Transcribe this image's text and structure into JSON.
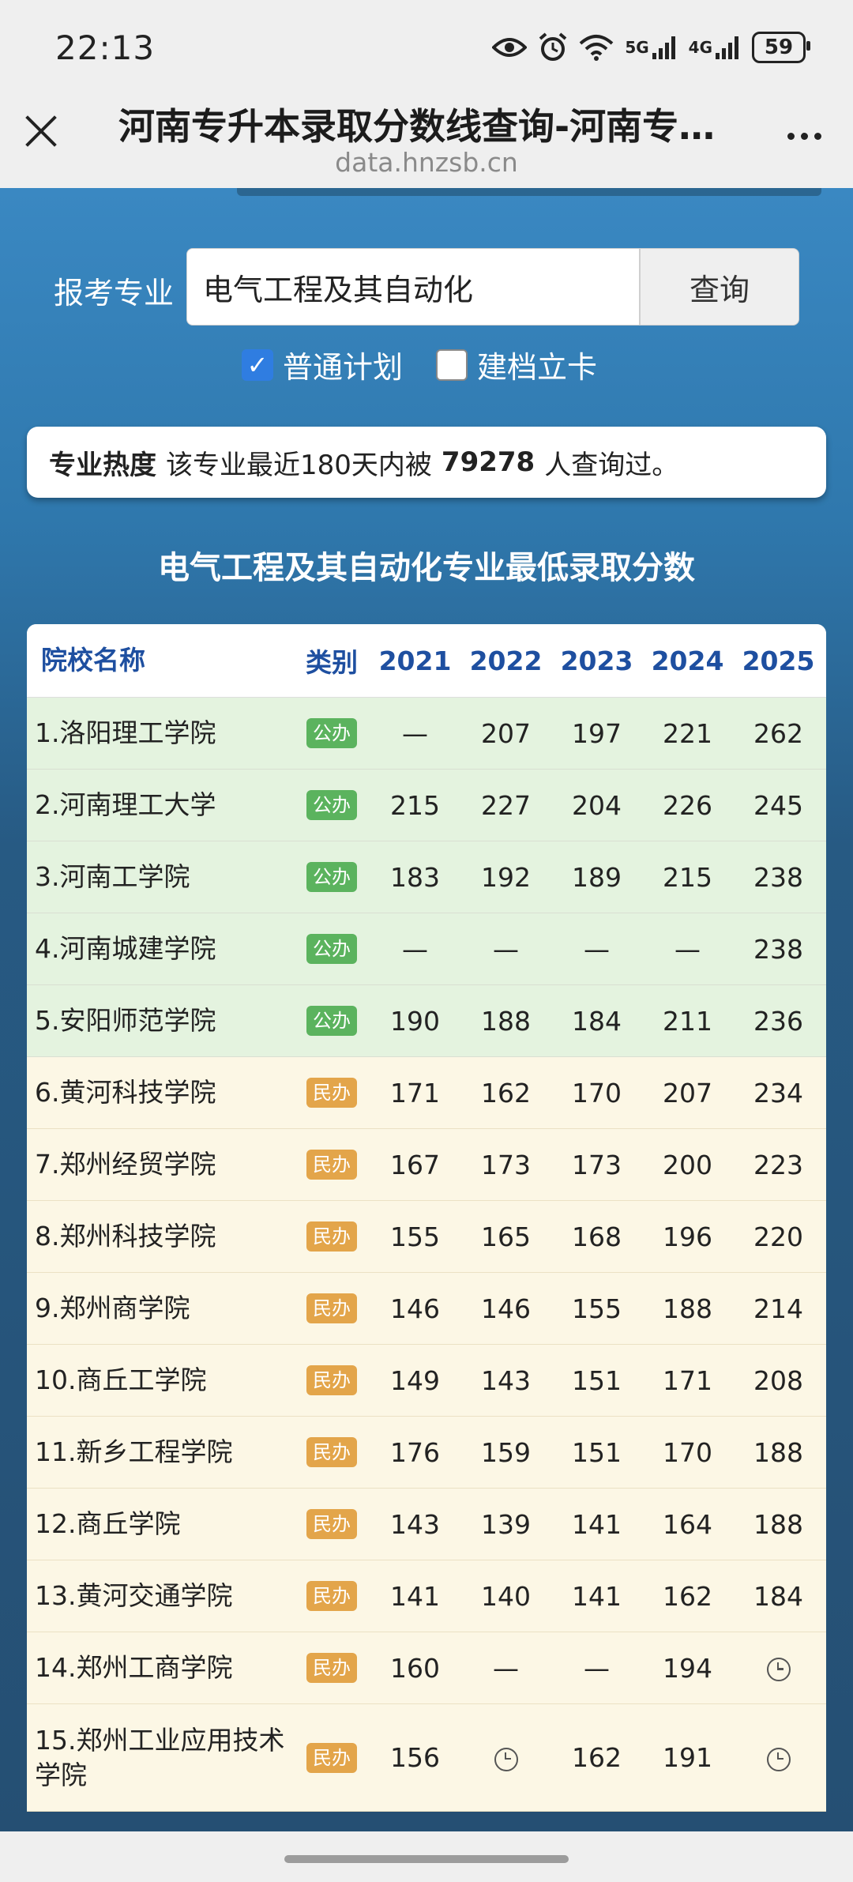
{
  "status_bar": {
    "time": "22:13",
    "icons": [
      "eye-icon",
      "alarm-icon",
      "wifi-icon",
      "signal-5g-icon",
      "signal-4g-icon"
    ],
    "net1": "5G",
    "net2": "4G",
    "battery": "59"
  },
  "browser": {
    "title": "河南专升本录取分数线查询-河南专…",
    "url": "data.hnzsb.cn"
  },
  "search": {
    "label": "报考专业",
    "value": "电气工程及其自动化",
    "button": "查询"
  },
  "filters": [
    {
      "label": "普通计划",
      "checked": true
    },
    {
      "label": "建档立卡",
      "checked": false
    }
  ],
  "heat": {
    "label": "专业热度",
    "prefix": "该专业最近180天内被",
    "count": "79278",
    "suffix": "人查询过。"
  },
  "table": {
    "title": "电气工程及其自动化专业最低录取分数",
    "headers": [
      "院校名称",
      "类别",
      "2021",
      "2022",
      "2023",
      "2024",
      "2025"
    ],
    "rows": [
      {
        "name": "1.洛阳理工学院",
        "type": "公办",
        "kind": "pub",
        "scores": [
          "—",
          "207",
          "197",
          "221",
          "262"
        ]
      },
      {
        "name": "2.河南理工大学",
        "type": "公办",
        "kind": "pub",
        "scores": [
          "215",
          "227",
          "204",
          "226",
          "245"
        ]
      },
      {
        "name": "3.河南工学院",
        "type": "公办",
        "kind": "pub",
        "scores": [
          "183",
          "192",
          "189",
          "215",
          "238"
        ]
      },
      {
        "name": "4.河南城建学院",
        "type": "公办",
        "kind": "pub",
        "scores": [
          "—",
          "—",
          "—",
          "—",
          "238"
        ]
      },
      {
        "name": "5.安阳师范学院",
        "type": "公办",
        "kind": "pub",
        "scores": [
          "190",
          "188",
          "184",
          "211",
          "236"
        ]
      },
      {
        "name": "6.黄河科技学院",
        "type": "民办",
        "kind": "pri",
        "scores": [
          "171",
          "162",
          "170",
          "207",
          "234"
        ]
      },
      {
        "name": "7.郑州经贸学院",
        "type": "民办",
        "kind": "pri",
        "scores": [
          "167",
          "173",
          "173",
          "200",
          "223"
        ]
      },
      {
        "name": "8.郑州科技学院",
        "type": "民办",
        "kind": "pri",
        "scores": [
          "155",
          "165",
          "168",
          "196",
          "220"
        ]
      },
      {
        "name": "9.郑州商学院",
        "type": "民办",
        "kind": "pri",
        "scores": [
          "146",
          "146",
          "155",
          "188",
          "214"
        ]
      },
      {
        "name": "10.商丘工学院",
        "type": "民办",
        "kind": "pri",
        "scores": [
          "149",
          "143",
          "151",
          "171",
          "208"
        ]
      },
      {
        "name": "11.新乡工程学院",
        "type": "民办",
        "kind": "pri",
        "scores": [
          "176",
          "159",
          "151",
          "170",
          "188"
        ]
      },
      {
        "name": "12.商丘学院",
        "type": "民办",
        "kind": "pri",
        "scores": [
          "143",
          "139",
          "141",
          "164",
          "188"
        ]
      },
      {
        "name": "13.黄河交通学院",
        "type": "民办",
        "kind": "pri",
        "scores": [
          "141",
          "140",
          "141",
          "162",
          "184"
        ]
      },
      {
        "name": "14.郑州工商学院",
        "type": "民办",
        "kind": "pri",
        "scores": [
          "160",
          "—",
          "—",
          "194",
          "clock"
        ]
      },
      {
        "name": "15.郑州工业应用技术学院",
        "type": "民办",
        "kind": "pri",
        "scores": [
          "156",
          "clock",
          "162",
          "191",
          "clock"
        ]
      }
    ]
  }
}
